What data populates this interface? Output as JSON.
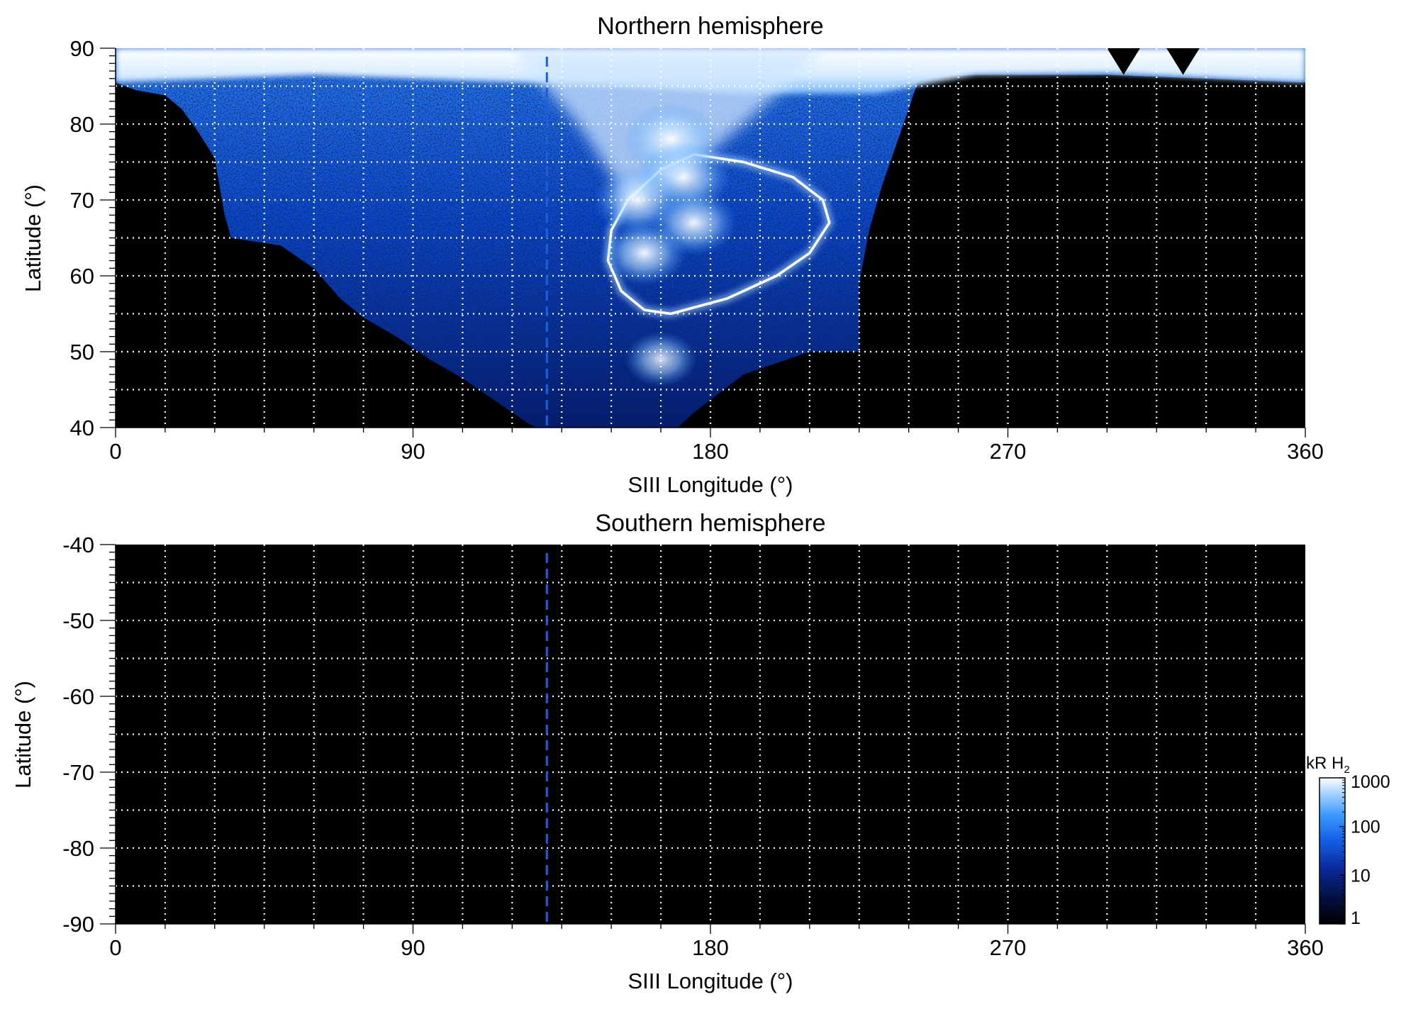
{
  "colors": {
    "background": "#ffffff",
    "plot_background": "#000000",
    "grid": "#ffffff",
    "marker_line": "#1e5fd6",
    "colormap": [
      "#000000",
      "#03103f",
      "#0a2a9c",
      "#1560e6",
      "#3d9bff",
      "#a9d6ff",
      "#ffffff"
    ]
  },
  "chart_data": [
    {
      "type": "heatmap",
      "title": "Northern hemisphere",
      "xlabel": "SIII Longitude (°)",
      "ylabel": "Latitude (°)",
      "xlim": [
        0,
        360
      ],
      "ylim": [
        40,
        90
      ],
      "x_ticks": [
        "0",
        "90",
        "180",
        "270",
        "360"
      ],
      "y_ticks": [
        "40",
        "50",
        "60",
        "70",
        "80",
        "90"
      ],
      "grid": true,
      "marker_longitude": 130.5,
      "coverage_boundary": [
        [
          0,
          85.5
        ],
        [
          6,
          84.5
        ],
        [
          15,
          83.8
        ],
        [
          20,
          82
        ],
        [
          25,
          79
        ],
        [
          30,
          75.5
        ],
        [
          33,
          68
        ],
        [
          35,
          65
        ],
        [
          50,
          64
        ],
        [
          60,
          61
        ],
        [
          68,
          57
        ],
        [
          75,
          54.5
        ],
        [
          85,
          52
        ],
        [
          95,
          49
        ],
        [
          105,
          46.5
        ],
        [
          115,
          43.5
        ],
        [
          125,
          40.5
        ],
        [
          130,
          39.5
        ],
        [
          160,
          39.5
        ],
        [
          170,
          40
        ],
        [
          175,
          42
        ],
        [
          190,
          47
        ],
        [
          210,
          50
        ],
        [
          225,
          50
        ],
        [
          225,
          59
        ],
        [
          228,
          66
        ],
        [
          232,
          72
        ],
        [
          236,
          77
        ],
        [
          240,
          82
        ],
        [
          243,
          86
        ],
        [
          260,
          86.5
        ],
        [
          300,
          86.5
        ],
        [
          360,
          85.5
        ]
      ],
      "features": {
        "main_oval": [
          [
            168,
            55
          ],
          [
            185,
            57
          ],
          [
            200,
            60
          ],
          [
            210,
            63
          ],
          [
            216,
            67
          ],
          [
            214,
            70
          ],
          [
            205,
            73
          ],
          [
            190,
            75
          ],
          [
            175,
            76
          ],
          [
            165,
            74
          ],
          [
            155,
            70
          ],
          [
            150,
            66
          ],
          [
            149,
            62
          ],
          [
            153,
            58
          ],
          [
            160,
            55.5
          ],
          [
            168,
            55
          ]
        ],
        "bright_patches": [
          {
            "lon": 168,
            "lat": 78,
            "kR": 1000
          },
          {
            "lon": 172,
            "lat": 73,
            "kR": 800
          },
          {
            "lon": 158,
            "lat": 70,
            "kR": 500
          },
          {
            "lon": 175,
            "lat": 67,
            "kR": 400
          },
          {
            "lon": 160,
            "lat": 63,
            "kR": 350
          },
          {
            "lon": 165,
            "lat": 49,
            "kR": 120
          }
        ],
        "polar_brightening": {
          "lat_min": 84,
          "kR": 1000
        }
      }
    },
    {
      "type": "heatmap",
      "title": "Southern hemisphere",
      "xlabel": "SIII Longitude (°)",
      "ylabel": "Latitude (°)",
      "xlim": [
        0,
        360
      ],
      "ylim": [
        -90,
        -40
      ],
      "x_ticks": [
        "0",
        "90",
        "180",
        "270",
        "360"
      ],
      "y_ticks": [
        "-40",
        "-50",
        "-60",
        "-70",
        "-80",
        "-90"
      ],
      "grid": true,
      "marker_longitude": 130.5,
      "coverage_boundary": []
    }
  ],
  "colorbar": {
    "title": "kR H",
    "title_subscript": "2",
    "scale": "log",
    "range": [
      1,
      1000
    ],
    "ticks": [
      "1",
      "10",
      "100",
      "1000"
    ]
  }
}
